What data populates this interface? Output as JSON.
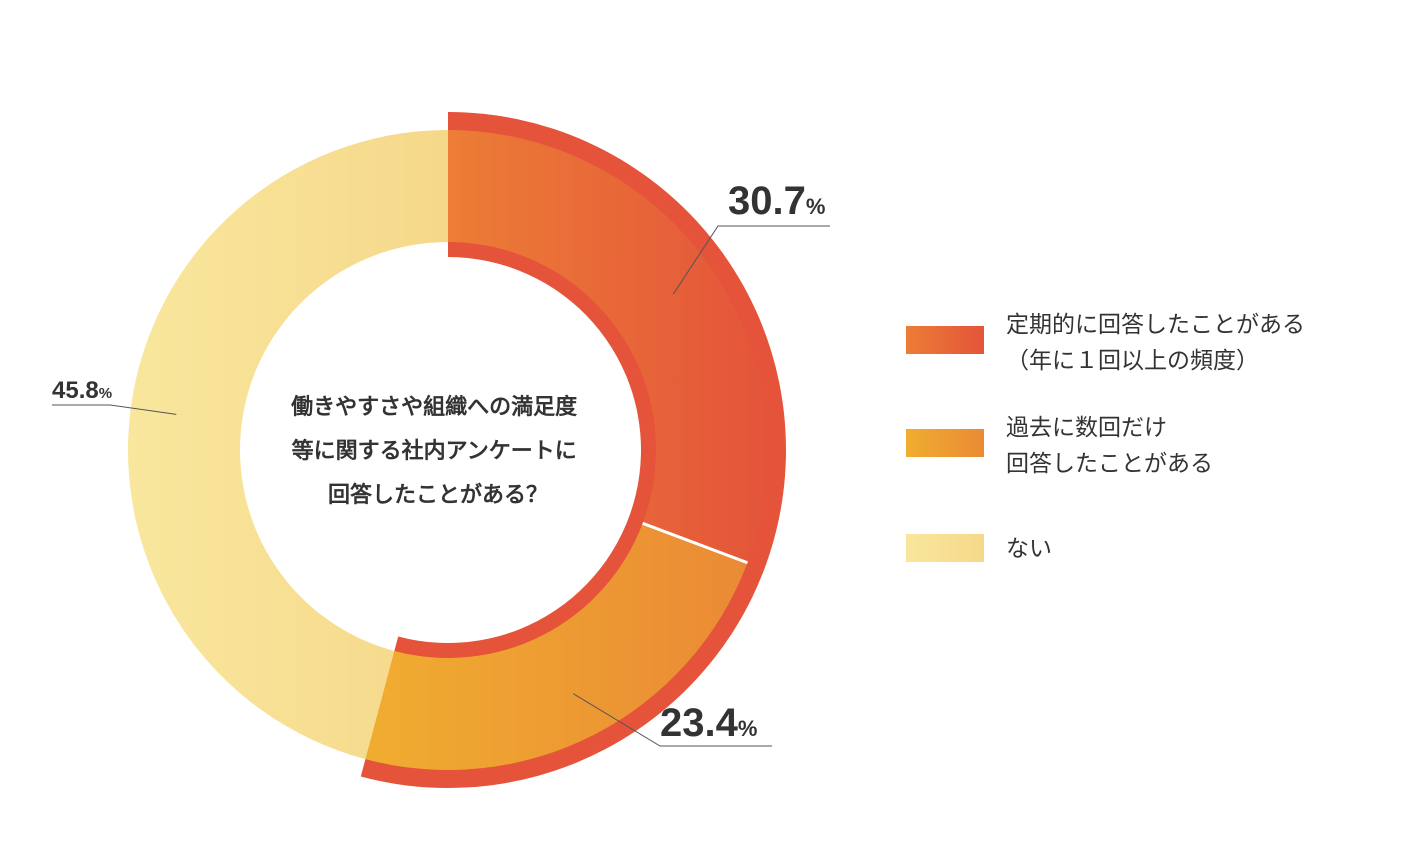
{
  "chart_data": {
    "type": "pie",
    "variant": "donut",
    "title": "",
    "center_label": [
      "働きやすさや組織への満足度",
      "等に関する社内アンケートに",
      "回答したことがある？"
    ],
    "categories": [
      "定期的に回答したことがある（年に１回以上の頻度）",
      "過去に数回だけ回答したことがある",
      "ない"
    ],
    "values": [
      30.7,
      23.4,
      45.8
    ],
    "unit": "%",
    "highlighted_slices": [
      0,
      1
    ],
    "highlight_color": "#e4533a",
    "slices": [
      {
        "label": "定期的に回答したことがある（年に１回以上の頻度）",
        "legend_lines": [
          "定期的に回答したことがある",
          "（年に１回以上の頻度）"
        ],
        "value": 30.7,
        "display": "30.7",
        "unit": "%",
        "color_from": "#ec7d36",
        "color_to": "#e4543a"
      },
      {
        "label": "過去に数回だけ回答したことがある",
        "legend_lines": [
          "過去に数回だけ",
          "回答したことがある"
        ],
        "value": 23.4,
        "display": "23.4",
        "unit": "%",
        "color_from": "#f0ad30",
        "color_to": "#ea8a35"
      },
      {
        "label": "ない",
        "legend_lines": [
          "ない"
        ],
        "value": 45.8,
        "display": "45.8",
        "unit": "%",
        "color_from": "#f8e79d",
        "color_to": "#f6d88a"
      }
    ],
    "legend_placement": "right"
  }
}
